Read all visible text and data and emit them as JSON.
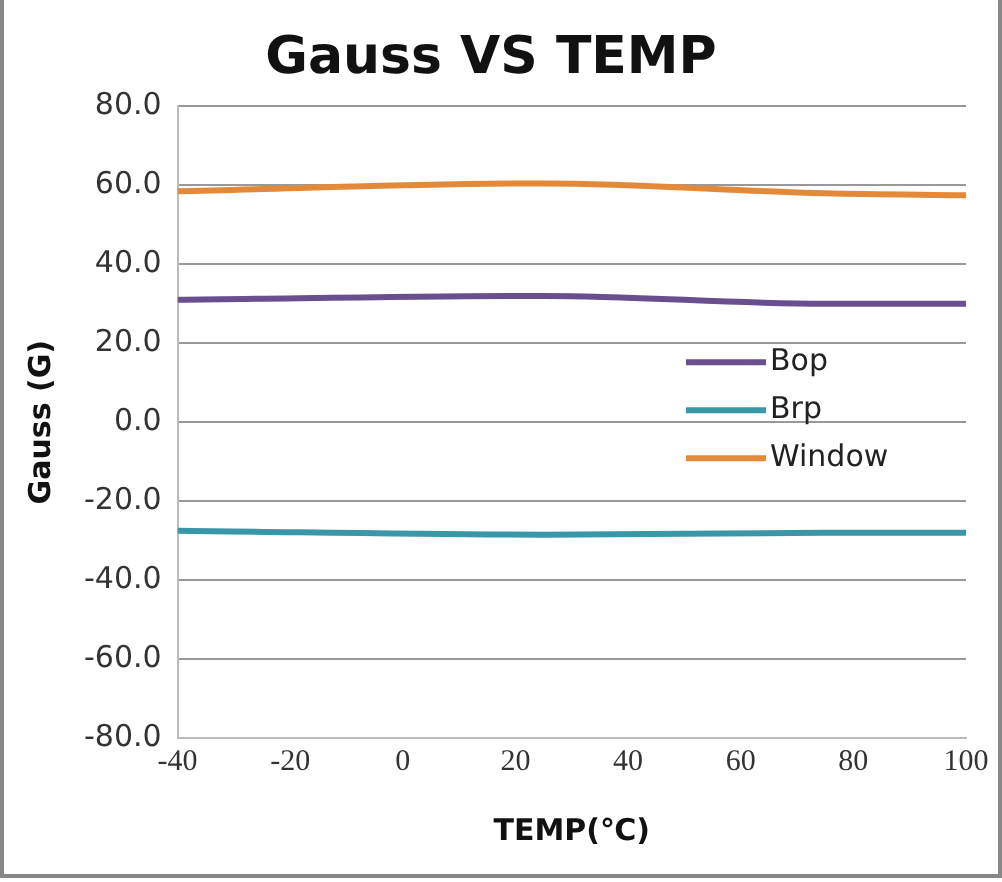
{
  "chart_data": {
    "type": "line",
    "title": "Gauss VS TEMP",
    "xlabel": "TEMP(℃)",
    "ylabel": "Gauss (G)",
    "x": [
      -40,
      25,
      75,
      100
    ],
    "series": [
      {
        "name": "Bop",
        "color": "#6a4f8f",
        "values": [
          31,
          32,
          30,
          30
        ]
      },
      {
        "name": "Brp",
        "color": "#3a97a8",
        "values": [
          -27.5,
          -28.5,
          -28,
          -28
        ]
      },
      {
        "name": "Window",
        "color": "#e38a3a",
        "values": [
          58.5,
          60.5,
          58,
          57.5
        ]
      }
    ],
    "xlim": [
      -40,
      100
    ],
    "xticks": [
      -40,
      -20,
      0,
      20,
      40,
      60,
      80,
      100
    ],
    "ylim": [
      -80,
      80
    ],
    "yticks": [
      {
        "value": -80,
        "label": "-80.0"
      },
      {
        "value": -60,
        "label": "-60.0"
      },
      {
        "value": -40,
        "label": "-40.0"
      },
      {
        "value": -20,
        "label": "-20.0"
      },
      {
        "value": 0,
        "label": "0.0"
      },
      {
        "value": 20,
        "label": "20.0"
      },
      {
        "value": 40,
        "label": "40.0"
      },
      {
        "value": 60,
        "label": "60.0"
      },
      {
        "value": 80,
        "label": "80.0"
      }
    ],
    "grid": "y",
    "legend": "right",
    "marker": "none",
    "line_style": "solid"
  }
}
